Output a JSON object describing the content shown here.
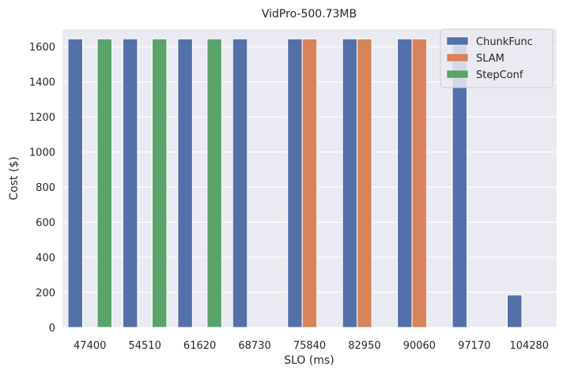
{
  "chart_data": {
    "type": "bar",
    "title": "VidPro-500.73MB",
    "xlabel": "SLO (ms)",
    "ylabel": "Cost ($)",
    "categories": [
      "47400",
      "54510",
      "61620",
      "68730",
      "75840",
      "82950",
      "90060",
      "97170",
      "104280"
    ],
    "ylim": [
      0,
      1700
    ],
    "yticks": [
      0,
      200,
      400,
      600,
      800,
      1000,
      1200,
      1400,
      1600
    ],
    "grid": true,
    "legend_position": "top-right",
    "series": [
      {
        "name": "ChunkFunc",
        "color": "#5470a8",
        "values": [
          1645,
          1645,
          1645,
          1645,
          1645,
          1645,
          1645,
          1645,
          185
        ]
      },
      {
        "name": "SLAM",
        "color": "#d7845a",
        "values": [
          0,
          0,
          0,
          0,
          1645,
          1645,
          1645,
          0,
          0
        ]
      },
      {
        "name": "StepConf",
        "color": "#5aa36a",
        "values": [
          1645,
          1645,
          1645,
          0,
          0,
          0,
          0,
          0,
          0
        ]
      }
    ]
  }
}
